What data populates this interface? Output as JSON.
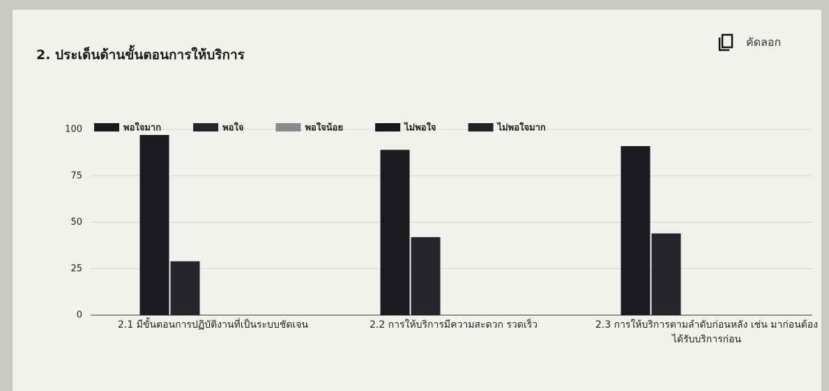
{
  "header": {
    "title": "2. ประเด็นด้านขั้นตอนการให้บริการ",
    "copy_button": "คัดลอก"
  },
  "chart_data": {
    "type": "bar",
    "categories": [
      "2.1 มีขั้นตอนการปฏิบัติงานที่เป็นระบบชัดเจน",
      "2.2 การให้บริการมีความสะดวก รวดเร็ว",
      "2.3 การให้บริการตามลำดับก่อนหลัง เช่น มาก่อนต้องได้รับบริการก่อน"
    ],
    "series": [
      {
        "name": "พอใจมาก",
        "color": "#1b1b1f",
        "values": [
          97,
          89,
          91
        ]
      },
      {
        "name": "พอใจ",
        "color": "#26262a",
        "values": [
          29,
          42,
          44
        ]
      },
      {
        "name": "พอใจน้อย",
        "color": "#8a8a8a",
        "values": [
          0,
          0,
          0
        ]
      },
      {
        "name": "ไม่พอใจ",
        "color": "#18181b",
        "values": [
          0,
          0,
          0
        ]
      },
      {
        "name": "ไม่พอใจมาก",
        "color": "#222226",
        "values": [
          0,
          0,
          0
        ]
      }
    ],
    "ylim": [
      0,
      100
    ],
    "yticks": [
      0,
      25,
      50,
      75,
      100
    ],
    "grid": true,
    "legend": "top"
  }
}
